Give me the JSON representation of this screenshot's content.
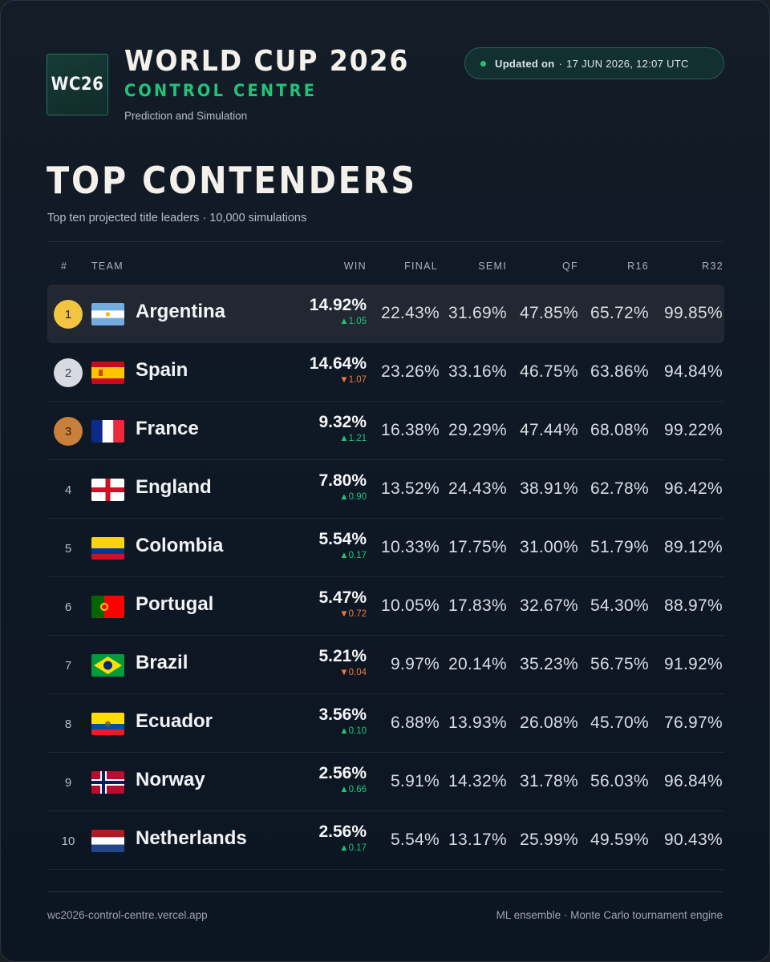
{
  "header": {
    "logo_text": "WC26",
    "title": "WORLD CUP 2026",
    "subtitle": "CONTROL CENTRE",
    "tagline": "Prediction and Simulation",
    "updated_label": "Updated on",
    "updated_sep": "·",
    "updated_value": "17 JUN 2026, 12:07 UTC",
    "status_color": "#22c27a"
  },
  "section": {
    "title": "TOP CONTENDERS",
    "subtitle": "Top ten projected title leaders · 10,000 simulations"
  },
  "table": {
    "columns": {
      "rank": "#",
      "team": "TEAM",
      "win": "WIN",
      "final": "FINAL",
      "semi": "SEMI",
      "qf": "QF",
      "r16": "R16",
      "r32": "R32"
    },
    "rows": [
      {
        "rank": "1",
        "team": "Argentina",
        "flag": "argentina-flag",
        "win": "14.92%",
        "delta": "▲1.05",
        "dir": "up",
        "final": "22.43%",
        "semi": "31.69%",
        "qf": "47.85%",
        "r16": "65.72%",
        "r32": "99.85%"
      },
      {
        "rank": "2",
        "team": "Spain",
        "flag": "spain-flag",
        "win": "14.64%",
        "delta": "▼1.07",
        "dir": "down",
        "final": "23.26%",
        "semi": "33.16%",
        "qf": "46.75%",
        "r16": "63.86%",
        "r32": "94.84%"
      },
      {
        "rank": "3",
        "team": "France",
        "flag": "france-flag",
        "win": "9.32%",
        "delta": "▲1.21",
        "dir": "up",
        "final": "16.38%",
        "semi": "29.29%",
        "qf": "47.44%",
        "r16": "68.08%",
        "r32": "99.22%"
      },
      {
        "rank": "4",
        "team": "England",
        "flag": "england-flag",
        "win": "7.80%",
        "delta": "▲0.90",
        "dir": "up",
        "final": "13.52%",
        "semi": "24.43%",
        "qf": "38.91%",
        "r16": "62.78%",
        "r32": "96.42%"
      },
      {
        "rank": "5",
        "team": "Colombia",
        "flag": "colombia-flag",
        "win": "5.54%",
        "delta": "▲0.17",
        "dir": "up",
        "final": "10.33%",
        "semi": "17.75%",
        "qf": "31.00%",
        "r16": "51.79%",
        "r32": "89.12%"
      },
      {
        "rank": "6",
        "team": "Portugal",
        "flag": "portugal-flag",
        "win": "5.47%",
        "delta": "▼0.72",
        "dir": "down",
        "final": "10.05%",
        "semi": "17.83%",
        "qf": "32.67%",
        "r16": "54.30%",
        "r32": "88.97%"
      },
      {
        "rank": "7",
        "team": "Brazil",
        "flag": "brazil-flag",
        "win": "5.21%",
        "delta": "▼0.04",
        "dir": "down",
        "final": "9.97%",
        "semi": "20.14%",
        "qf": "35.23%",
        "r16": "56.75%",
        "r32": "91.92%"
      },
      {
        "rank": "8",
        "team": "Ecuador",
        "flag": "ecuador-flag",
        "win": "3.56%",
        "delta": "▲0.10",
        "dir": "up",
        "final": "6.88%",
        "semi": "13.93%",
        "qf": "26.08%",
        "r16": "45.70%",
        "r32": "76.97%"
      },
      {
        "rank": "9",
        "team": "Norway",
        "flag": "norway-flag",
        "win": "2.56%",
        "delta": "▲0.66",
        "dir": "up",
        "final": "5.91%",
        "semi": "14.32%",
        "qf": "31.78%",
        "r16": "56.03%",
        "r32": "96.84%"
      },
      {
        "rank": "10",
        "team": "Netherlands",
        "flag": "netherlands-flag",
        "win": "2.56%",
        "delta": "▲0.17",
        "dir": "up",
        "final": "5.54%",
        "semi": "13.17%",
        "qf": "25.99%",
        "r16": "49.59%",
        "r32": "90.43%"
      }
    ]
  },
  "footer": {
    "left": "wc2026-control-centre.vercel.app",
    "right": "ML ensemble · Monte Carlo tournament engine"
  },
  "colors": {
    "accent": "#22c27a",
    "up": "#22c27a",
    "down": "#f07a3c",
    "gold": "#f2c440",
    "silver": "#d7dbe1",
    "bronze": "#c9803a"
  }
}
